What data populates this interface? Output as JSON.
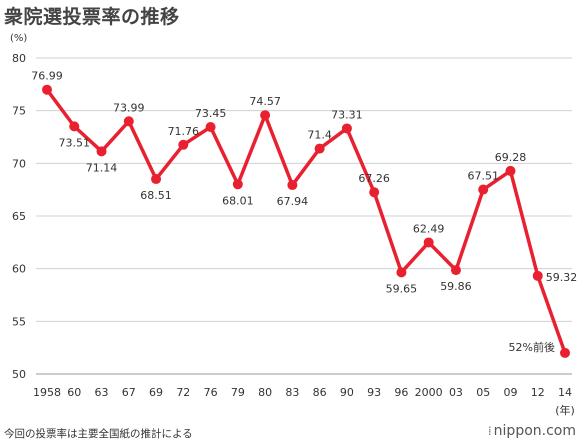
{
  "title": "衆院選投票率の推移",
  "footnote": "今回の投票率は主要全国紙の推計による",
  "logo_text": "nippon.com",
  "colors": {
    "line": "#e8202f",
    "grid": "#d0d0d0",
    "text": "#333333"
  },
  "chart_data": {
    "type": "line",
    "title": "衆院選投票率の推移",
    "y_unit_label": "(%)",
    "x_unit_label": "(年)",
    "ylim": [
      50,
      80
    ],
    "yticks": [
      50,
      55,
      60,
      65,
      70,
      75,
      80
    ],
    "grid": "horizontal",
    "categories": [
      "1958",
      "60",
      "63",
      "67",
      "69",
      "72",
      "76",
      "79",
      "80",
      "83",
      "86",
      "90",
      "93",
      "96",
      "2000",
      "03",
      "05",
      "09",
      "12",
      "14"
    ],
    "values": [
      76.99,
      73.51,
      71.14,
      73.99,
      68.51,
      71.76,
      73.45,
      68.01,
      74.57,
      67.94,
      71.4,
      73.31,
      67.26,
      59.65,
      62.49,
      59.86,
      67.51,
      69.28,
      59.32,
      52
    ],
    "data_labels": [
      "76.99",
      "73.51",
      "71.14",
      "73.99",
      "68.51",
      "71.76",
      "73.45",
      "68.01",
      "74.57",
      "67.94",
      "71.4",
      "73.31",
      "67.26",
      "59.65",
      "62.49",
      "59.86",
      "67.51",
      "69.28",
      "59.32",
      "52%前後"
    ],
    "label_positions": [
      "above",
      "below",
      "below",
      "above",
      "below",
      "above",
      "above",
      "below",
      "above",
      "below",
      "above",
      "above",
      "above",
      "below",
      "above",
      "below",
      "above",
      "above",
      "right",
      "left"
    ]
  }
}
